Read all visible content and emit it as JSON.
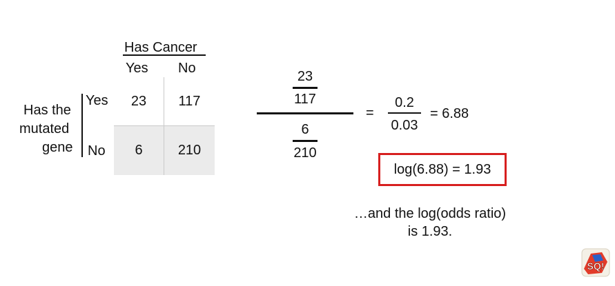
{
  "table": {
    "column_group_label": "Has Cancer",
    "column_labels": [
      "Yes",
      "No"
    ],
    "row_group_label_lines": [
      "Has the",
      "mutated",
      "gene"
    ],
    "row_labels": [
      "Yes",
      "No"
    ],
    "cells": [
      [
        23,
        117
      ],
      [
        6,
        210
      ]
    ]
  },
  "calculation": {
    "top_fraction": {
      "numerator": "23",
      "denominator": "117"
    },
    "bottom_fraction": {
      "numerator": "6",
      "denominator": "210"
    },
    "equals_1": "=",
    "ratio_fraction": {
      "numerator": "0.2",
      "denominator": "0.03"
    },
    "equals_result": "= 6.88",
    "log_result": "log(6.88) = 1.93",
    "highlight_color": "#d71f1f"
  },
  "caption": {
    "line1": "…and the log(odds ratio)",
    "line2": "is 1.93."
  },
  "logo": {
    "icon": "statquest-logo-icon",
    "text": "SQ!"
  }
}
